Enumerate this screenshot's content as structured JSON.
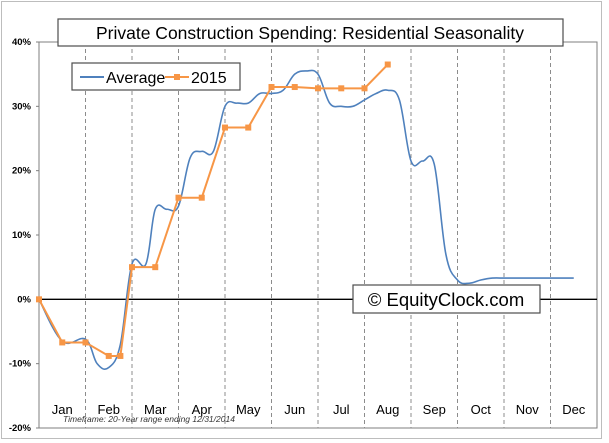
{
  "chart_data": {
    "type": "line",
    "title": "Private Construction Spending: Residential Seasonality",
    "watermark": "© EquityClock.com",
    "footnote": "Timeframe: 20-Year range ending 12/31/2014",
    "ylim": [
      -20,
      40
    ],
    "yticks": [
      -20,
      -10,
      0,
      10,
      20,
      30,
      40
    ],
    "ytick_labels": [
      "-20%",
      "-10%",
      "0%",
      "10%",
      "20%",
      "30%",
      "40%"
    ],
    "xlim": [
      0,
      12
    ],
    "categories": [
      "Jan",
      "Feb",
      "Mar",
      "Apr",
      "May",
      "Jun",
      "Jul",
      "Aug",
      "Sep",
      "Oct",
      "Nov",
      "Dec"
    ],
    "legend_position": "top-left",
    "grid": "vertical dashed at month boundaries",
    "colors": {
      "average": "#4f81bd",
      "y2015": "#f79646"
    },
    "series": [
      {
        "name": "Average",
        "x": [
          0,
          0.5,
          1,
          1.25,
          1.5,
          1.75,
          2,
          2.3,
          2.5,
          2.75,
          3,
          3.25,
          3.5,
          3.75,
          4,
          4.25,
          4.5,
          4.75,
          5,
          5.25,
          5.5,
          5.75,
          6,
          6.25,
          6.5,
          6.75,
          7,
          7.25,
          7.5,
          7.75,
          8,
          8.25,
          8.5,
          8.75,
          9,
          9.25,
          9.5,
          9.75,
          10,
          10.25,
          10.5,
          10.75,
          11,
          11.25,
          11.5
        ],
        "y": [
          0,
          -6.5,
          -6.2,
          -10,
          -10.6,
          -7,
          5.5,
          5.5,
          14,
          14,
          14.5,
          22,
          23,
          23,
          30,
          30.5,
          30.5,
          32,
          32,
          32.5,
          35,
          35.5,
          35,
          30.5,
          30,
          30,
          31,
          32,
          32.5,
          31,
          21.5,
          21.5,
          21,
          7,
          3,
          2.5,
          3,
          3.3,
          3.3,
          3.3,
          3.3,
          3.3,
          3.3,
          3.3,
          3.3
        ]
      },
      {
        "name": "2015",
        "x": [
          0,
          0.5,
          1,
          1.5,
          1.75,
          2,
          2.5,
          3,
          3.5,
          4,
          4.5,
          5,
          5.5,
          6,
          6.5,
          7,
          7.5
        ],
        "y": [
          0,
          -6.7,
          -6.7,
          -8.8,
          -8.8,
          5,
          5,
          15.8,
          15.8,
          26.7,
          26.7,
          33,
          33,
          32.8,
          32.8,
          32.8,
          36.5
        ]
      }
    ]
  }
}
